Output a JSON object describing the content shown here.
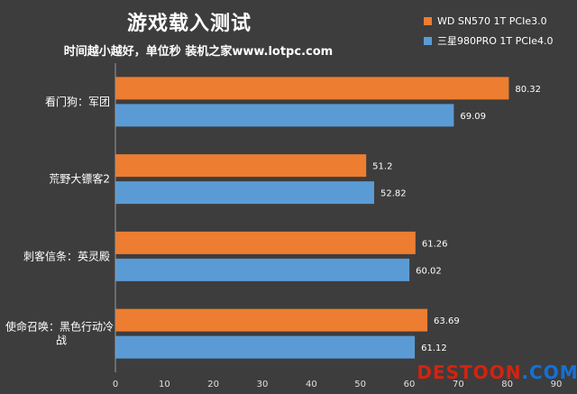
{
  "chart_data": {
    "type": "bar",
    "orientation": "horizontal",
    "title": "游戏载入测试",
    "subtitle": "时间越小越好，单位秒 装机之家www.lotpc.com",
    "categories": [
      "看门狗：军团",
      "荒野大镖客2",
      "刺客信条：英灵殿",
      "使命召唤：黑色行动冷战"
    ],
    "series": [
      {
        "name": "WD SN570 1T PCIe3.0",
        "color": "#ed7d31",
        "values": [
          80.32,
          51.2,
          61.26,
          63.69
        ]
      },
      {
        "name": "三星980PRO 1T PCIe4.0",
        "color": "#5b9bd5",
        "values": [
          69.09,
          52.82,
          60.02,
          61.12
        ]
      }
    ],
    "xlim": [
      0,
      90
    ],
    "xticks": [
      0,
      10,
      20,
      30,
      40,
      50,
      60,
      70,
      80,
      90
    ],
    "grid": false,
    "legend_position": "top-right"
  },
  "watermark": {
    "part1": "DESTOON",
    "part2": ".COM"
  }
}
